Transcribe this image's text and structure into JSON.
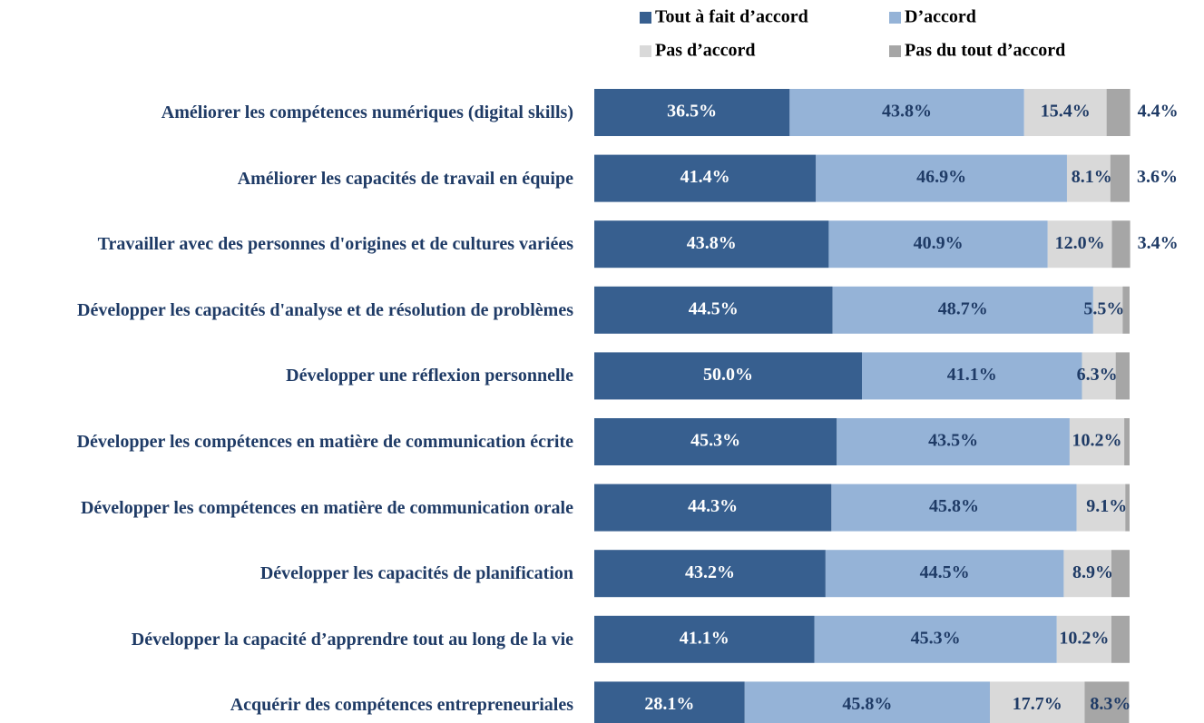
{
  "chart_data": {
    "type": "stacked-bar-horizontal",
    "categories": [
      "Améliorer les compétences numériques (digital skills)",
      "Améliorer les capacités de travail en équipe",
      "Travailler avec des personnes d'origines et de cultures variées",
      "Développer les capacités d'analyse et de résolution de problèmes",
      "Développer une réflexion personnelle",
      "Développer les compétences en matière de communication écrite",
      "Développer les compétences en matière de communication orale",
      "Développer les capacités de planification",
      "Développer la capacité d’apprendre tout au long de la vie",
      "Acquérir des compétences entrepreneuriales"
    ],
    "xlim": [
      0,
      100
    ],
    "legend": "top",
    "series": [
      {
        "name": "Tout à fait d’accord",
        "color": "#375f8f",
        "values": [
          36.5,
          41.4,
          43.8,
          44.5,
          50.0,
          45.3,
          44.3,
          43.2,
          41.1,
          28.1
        ],
        "value_labels": [
          "36.5%",
          "41.4%",
          "43.8%",
          "44.5%",
          "50.0%",
          "45.3%",
          "44.3%",
          "43.2%",
          "41.1%",
          "28.1%"
        ]
      },
      {
        "name": "D’accord",
        "color": "#95b3d7",
        "values": [
          43.8,
          46.9,
          40.9,
          48.7,
          41.1,
          43.5,
          45.8,
          44.5,
          45.3,
          45.8
        ],
        "value_labels": [
          "43.8%",
          "46.9%",
          "40.9%",
          "48.7%",
          "41.1%",
          "43.5%",
          "45.8%",
          "44.5%",
          "45.3%",
          "45.8%"
        ]
      },
      {
        "name": "Pas d’accord",
        "color": "#d9d9d9",
        "values": [
          15.4,
          8.1,
          12.0,
          5.5,
          6.3,
          10.2,
          9.1,
          8.9,
          10.2,
          17.7
        ],
        "value_labels": [
          "15.4%",
          "8.1%",
          "12.0%",
          "5.5%",
          "6.3%",
          "10.2%",
          "9.1%",
          "8.9%",
          "10.2%",
          "17.7%"
        ]
      },
      {
        "name": "Pas du tout d’accord",
        "color": "#a6a6a6",
        "values": [
          4.4,
          3.6,
          3.4,
          1.3,
          2.6,
          1.0,
          0.8,
          3.4,
          3.4,
          8.3
        ],
        "value_labels": [
          "4.4%",
          "3.6%",
          "3.4%",
          null,
          null,
          null,
          null,
          null,
          null,
          "8.3%"
        ]
      }
    ]
  }
}
